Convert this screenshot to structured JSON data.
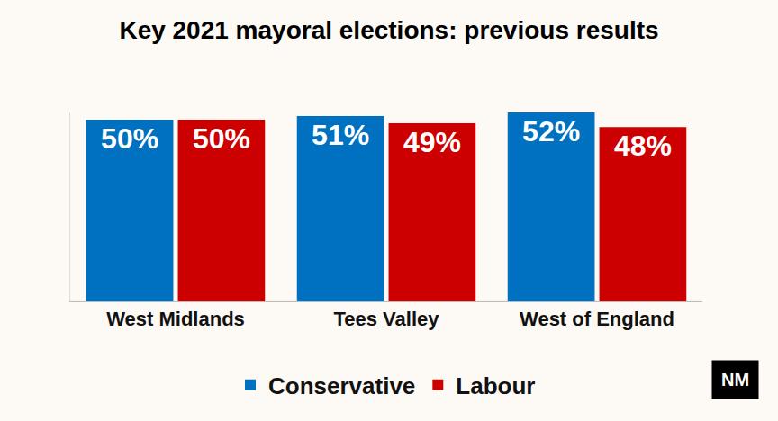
{
  "chart_data": {
    "type": "bar",
    "title": "Key 2021 mayoral elections: previous results",
    "categories": [
      "West Midlands",
      "Tees Valley",
      "West of England"
    ],
    "series": [
      {
        "name": "Conservative",
        "color": "#0070c0",
        "values": [
          50,
          51,
          52
        ],
        "value_labels": [
          "50%",
          "51%",
          "52%"
        ]
      },
      {
        "name": "Labour",
        "color": "#cc0000",
        "values": [
          50,
          49,
          48
        ],
        "value_labels": [
          "50%",
          "49%",
          "48%"
        ]
      }
    ],
    "ylim": [
      0,
      52
    ],
    "grid": false,
    "legend": "bottom",
    "data_labels": true,
    "tick_labels": "x",
    "annotations": [
      "NM"
    ]
  }
}
